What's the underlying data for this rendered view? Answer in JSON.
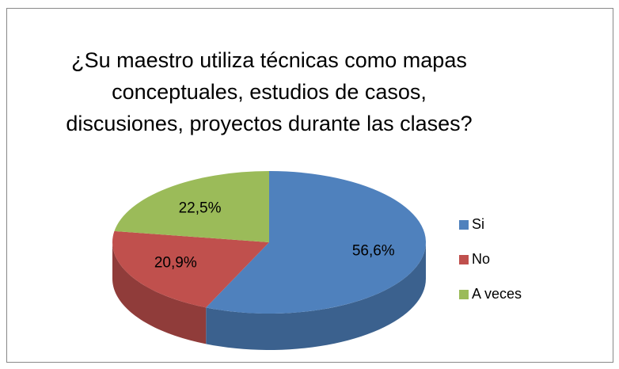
{
  "chart_data": {
    "type": "pie3d",
    "title": [
      "¿Su maestro utiliza técnicas como mapas",
      "conceptuales, estudios de casos,",
      "discusiones, proyectos durante las clases?"
    ],
    "categories": [
      "Si",
      "No",
      "A veces"
    ],
    "values": [
      56.6,
      20.9,
      22.5
    ],
    "value_labels": [
      "56,6%",
      "20,9%",
      "22,5%"
    ],
    "colors": [
      "#4f81bd",
      "#c0504d",
      "#9bbb59"
    ],
    "legend": "right"
  }
}
